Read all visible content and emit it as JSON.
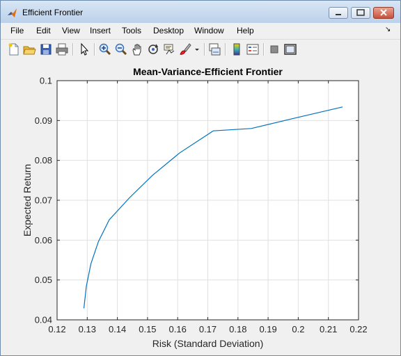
{
  "window": {
    "title": "Efficient Frontier"
  },
  "menu": [
    "File",
    "Edit",
    "View",
    "Insert",
    "Tools",
    "Desktop",
    "Window",
    "Help"
  ],
  "toolbar_icons": [
    "new-figure-icon",
    "open-file-icon",
    "save-icon",
    "print-icon",
    "pointer-icon",
    "zoom-in-icon",
    "zoom-out-icon",
    "pan-icon",
    "rotate-3d-icon",
    "data-cursor-icon",
    "brush-icon",
    "brush-dropdown-icon",
    "link-plot-icon",
    "colorbar-icon",
    "legend-icon",
    "hide-plot-tools-icon",
    "show-plot-tools-icon"
  ],
  "colors": {
    "line": "#0072bd",
    "grid": "#e0e0e0",
    "axes_bg": "#ffffff",
    "figure_bg": "#f0f0f0"
  },
  "chart_data": {
    "type": "line",
    "title": "Mean-Variance-Efficient Frontier",
    "xlabel": "Risk (Standard Deviation)",
    "ylabel": "Expected Return",
    "xlim": [
      0.12,
      0.22
    ],
    "ylim": [
      0.04,
      0.1
    ],
    "xticks": [
      "0.12",
      "0.13",
      "0.14",
      "0.15",
      "0.16",
      "0.17",
      "0.18",
      "0.19",
      "0.2",
      "0.21",
      "0.22"
    ],
    "yticks": [
      "0.04",
      "0.05",
      "0.06",
      "0.07",
      "0.08",
      "0.09",
      "0.1"
    ],
    "grid": true,
    "x": [
      0.1289,
      0.1297,
      0.1312,
      0.1337,
      0.1373,
      0.1441,
      0.1517,
      0.1607,
      0.1718,
      0.1844,
      0.2,
      0.2147
    ],
    "y": [
      0.0429,
      0.0484,
      0.054,
      0.0596,
      0.0651,
      0.0707,
      0.0763,
      0.0819,
      0.0874,
      0.088,
      0.0908,
      0.0934
    ]
  }
}
